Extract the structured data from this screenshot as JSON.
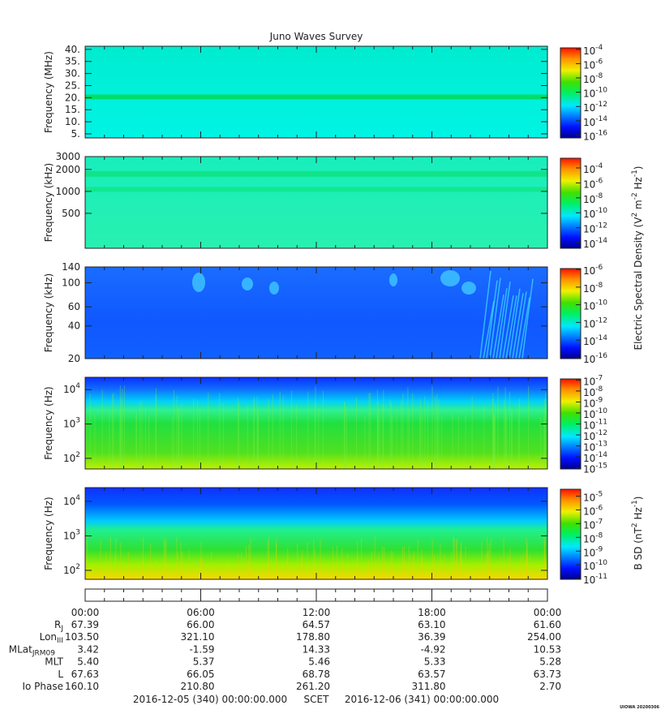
{
  "title": "Juno Waves Survey",
  "panels": [
    {
      "ylabel": "Frequency (MHz)",
      "scale": "linear",
      "ylim": [
        3.3,
        41.3
      ],
      "yticks": [
        {
          "value": 5,
          "label": "5."
        },
        {
          "value": 10,
          "label": "10."
        },
        {
          "value": 15,
          "label": "15."
        },
        {
          "value": 20,
          "label": "20."
        },
        {
          "value": 25,
          "label": "25."
        },
        {
          "value": 30,
          "label": "30."
        },
        {
          "value": 35,
          "label": "35."
        },
        {
          "value": 40,
          "label": "40."
        }
      ],
      "clim": [
        -16.4,
        -3.8
      ],
      "cticks": [
        {
          "value": -4,
          "label": "10^{-4}"
        },
        {
          "value": -6,
          "label": "10^{-6}"
        },
        {
          "value": -8,
          "label": "10^{-8}"
        },
        {
          "value": -10,
          "label": "10^{-10}"
        },
        {
          "value": -12,
          "label": "10^{-12}"
        },
        {
          "value": -14,
          "label": "10^{-14}"
        },
        {
          "value": -16,
          "label": "10^{-16}"
        }
      ]
    },
    {
      "ylabel": "Frequency (kHz)",
      "scale": "log",
      "ylim": [
        166,
        3000
      ],
      "yticks": [
        500,
        1000,
        2000,
        3000
      ],
      "clim": [
        -14.75,
        -2.7
      ],
      "cticks": [
        {
          "value": -4,
          "label": "10^{-4}"
        },
        {
          "value": -6,
          "label": "10^{-6}"
        },
        {
          "value": -8,
          "label": "10^{-8}"
        },
        {
          "value": -10,
          "label": "10^{-10}"
        },
        {
          "value": -12,
          "label": "10^{-12}"
        },
        {
          "value": -14,
          "label": "10^{-14}"
        }
      ]
    },
    {
      "ylabel": "Frequency (kHz)",
      "scale": "log",
      "ylim": [
        20,
        140
      ],
      "yticks": [
        20,
        40,
        60,
        100,
        140
      ],
      "clim": [
        -16.1,
        -5.9
      ],
      "cticks": [
        {
          "value": -6,
          "label": "10^{-6}"
        },
        {
          "value": -8,
          "label": "10^{-8}"
        },
        {
          "value": -10,
          "label": "10^{-10}"
        },
        {
          "value": -12,
          "label": "10^{-12}"
        },
        {
          "value": -14,
          "label": "10^{-14}"
        },
        {
          "value": -16,
          "label": "10^{-16}"
        }
      ]
    },
    {
      "ylabel": "Frequency (Hz)",
      "scale": "log",
      "ylim": [
        49,
        22900
      ],
      "yticks": [
        {
          "value": 100,
          "label": "10^{2}"
        },
        {
          "value": 1000,
          "label": "10^{3}"
        },
        {
          "value": 10000,
          "label": "10^{4}"
        }
      ],
      "clim": [
        -15.1,
        -6.9
      ],
      "cticks": [
        {
          "value": -7,
          "label": "10^{-7}"
        },
        {
          "value": -8,
          "label": "10^{-8}"
        },
        {
          "value": -9,
          "label": "10^{-9}"
        },
        {
          "value": -10,
          "label": "10^{-10}"
        },
        {
          "value": -11,
          "label": "10^{-11}"
        },
        {
          "value": -12,
          "label": "10^{-12}"
        },
        {
          "value": -13,
          "label": "10^{-13}"
        },
        {
          "value": -14,
          "label": "10^{-14}"
        },
        {
          "value": -15,
          "label": "10^{-15}"
        }
      ]
    },
    {
      "ylabel": "Frequency (Hz)",
      "scale": "log",
      "ylim": [
        55,
        25000
      ],
      "yticks": [
        {
          "value": 100,
          "label": "10^{2}"
        },
        {
          "value": 1000,
          "label": "10^{3}"
        },
        {
          "value": 10000,
          "label": "10^{4}"
        }
      ],
      "clim": [
        -11.05,
        -4.5
      ],
      "cticks": [
        {
          "value": -5,
          "label": "10^{-5}"
        },
        {
          "value": -6,
          "label": "10^{-6}"
        },
        {
          "value": -7,
          "label": "10^{-7}"
        },
        {
          "value": -8,
          "label": "10^{-8}"
        },
        {
          "value": -9,
          "label": "10^{-9}"
        },
        {
          "value": -10,
          "label": "10^{-10}"
        },
        {
          "value": -11,
          "label": "10^{-11}"
        }
      ]
    }
  ],
  "colorbar_labels": [
    "Electric Spectral Density (V^{2} m^{-2} Hz^{-1})",
    "B SD (nT^{2} Hz^{-1})"
  ],
  "time_axis": {
    "xlim": [
      0,
      24
    ],
    "xticks": [
      {
        "value": 0,
        "label": "00:00"
      },
      {
        "value": 6,
        "label": "06:00"
      },
      {
        "value": 12,
        "label": "12:00"
      },
      {
        "value": 18,
        "label": "18:00"
      },
      {
        "value": 24,
        "label": "00:00"
      }
    ]
  },
  "ephemeris": [
    {
      "label": "R_{J}",
      "values": [
        "67.39",
        "66.00",
        "64.57",
        "63.10",
        "61.60"
      ]
    },
    {
      "label": "Lon_{III}",
      "values": [
        "103.50",
        "321.10",
        "178.80",
        "36.39",
        "254.00"
      ]
    },
    {
      "label": "MLat_{JRM09}",
      "values": [
        "3.42",
        "-1.59",
        "14.33",
        "-4.92",
        "10.53"
      ]
    },
    {
      "label": "MLT",
      "values": [
        "5.40",
        "5.37",
        "5.46",
        "5.33",
        "5.28"
      ]
    },
    {
      "label": "L",
      "values": [
        "67.63",
        "66.05",
        "68.78",
        "63.57",
        "63.73"
      ]
    },
    {
      "label": "Io Phase",
      "values": [
        "160.10",
        "210.80",
        "261.20",
        "311.80",
        "2.70"
      ]
    }
  ],
  "footer": {
    "start": "2016-12-05 (340) 00:00:00.000",
    "label": "SCET",
    "end": "2016-12-06 (341) 00:00:00.000"
  },
  "credit": "UIOWA 20200306"
}
